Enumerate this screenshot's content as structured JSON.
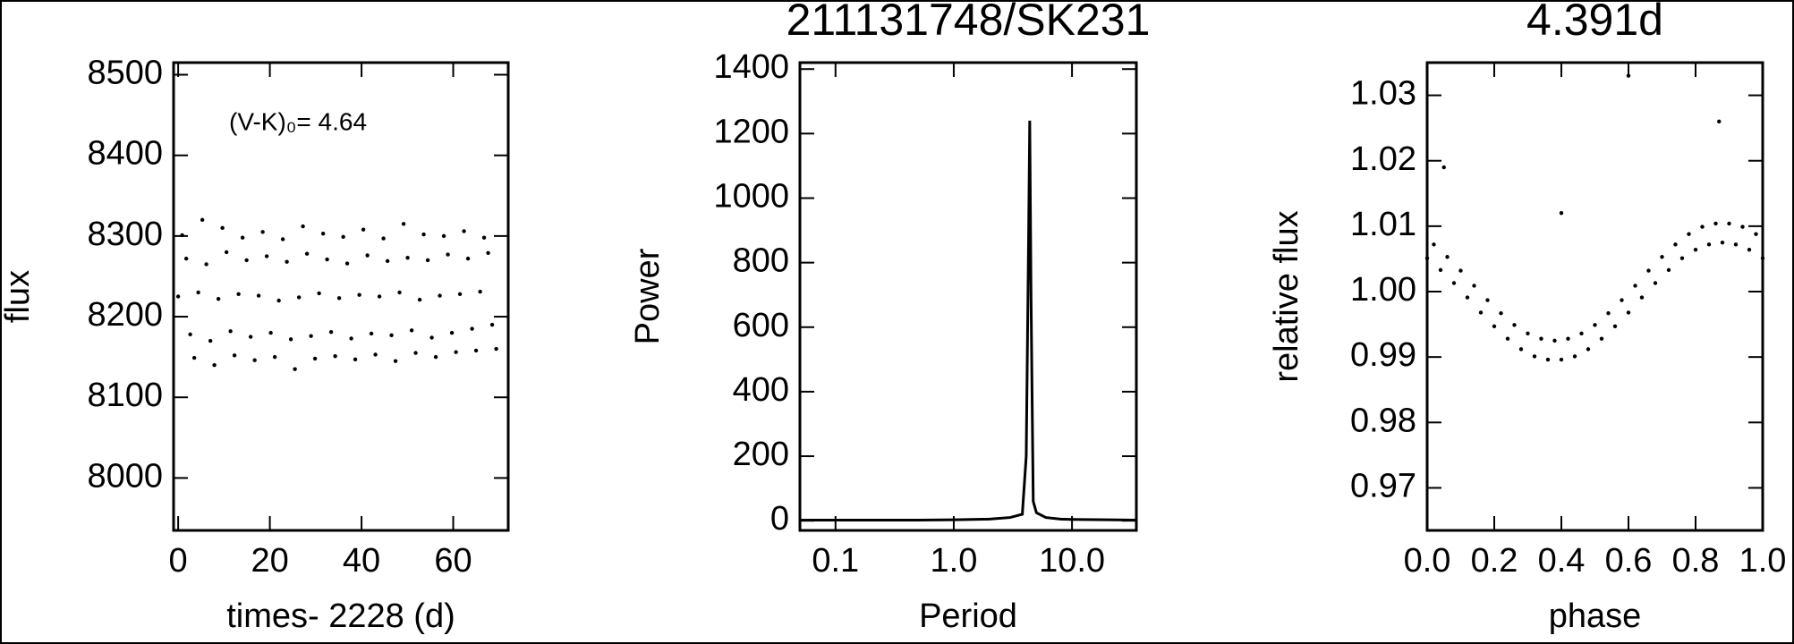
{
  "chart_data": [
    {
      "type": "scatter",
      "xlabel": "times- 2228 (d)",
      "ylabel": "flux",
      "annotation": "(V-K)₀= 4.64",
      "color": "#000000",
      "x": [
        0,
        0.88,
        1.76,
        2.63,
        3.51,
        4.39,
        5.27,
        6.15,
        7.03,
        7.9,
        8.78,
        9.66,
        10.54,
        11.42,
        12.29,
        13.17,
        14.05,
        14.93,
        15.81,
        16.69,
        17.56,
        18.44,
        19.32,
        20.2,
        21.08,
        21.96,
        22.83,
        23.71,
        24.59,
        25.47,
        26.35,
        27.22,
        28.1,
        28.98,
        29.86,
        30.74,
        31.62,
        32.49,
        33.37,
        34.25,
        35.13,
        36.01,
        36.88,
        37.76,
        38.64,
        39.52,
        40.4,
        41.28,
        42.15,
        43.03,
        43.91,
        44.79,
        45.67,
        46.54,
        47.42,
        48.3,
        49.18,
        50.06,
        50.94,
        51.81,
        52.69,
        53.57,
        54.45,
        55.33,
        56.2,
        57.08,
        57.96,
        58.84,
        59.72,
        60.6,
        61.47,
        62.35,
        63.23,
        64.11,
        64.99,
        65.87,
        66.74,
        67.62,
        68.5,
        69.38
      ],
      "values": [
        8225,
        8301,
        8272,
        8178,
        8149,
        8230,
        8320,
        8265,
        8170,
        8140,
        8222,
        8310,
        8280,
        8182,
        8152,
        8228,
        8298,
        8270,
        8175,
        8146,
        8226,
        8305,
        8275,
        8180,
        8150,
        8220,
        8296,
        8268,
        8172,
        8135,
        8224,
        8312,
        8278,
        8176,
        8148,
        8229,
        8303,
        8271,
        8181,
        8151,
        8223,
        8299,
        8266,
        8173,
        8147,
        8227,
        8308,
        8276,
        8179,
        8153,
        8225,
        8297,
        8269,
        8177,
        8145,
        8230,
        8315,
        8273,
        8183,
        8155,
        8221,
        8302,
        8270,
        8174,
        8150,
        8226,
        8300,
        8277,
        8180,
        8156,
        8228,
        8306,
        8272,
        8185,
        8158,
        8231,
        8298,
        8279,
        8190,
        8160
      ],
      "xlim": [
        -1,
        72
      ],
      "ylim": [
        7935,
        8515
      ],
      "xticks": [
        0,
        20,
        40,
        60
      ],
      "yticks": [
        8000,
        8100,
        8200,
        8300,
        8400,
        8500
      ]
    },
    {
      "type": "line",
      "title": "211131748/SK231",
      "xlabel": "Period",
      "ylabel": "Power",
      "color": "#000000",
      "xscale": "log",
      "x": [
        0.05,
        0.1,
        0.2,
        0.5,
        1,
        2,
        3,
        3.8,
        4.1,
        4.3,
        4.39,
        4.5,
        4.7,
        5,
        6,
        8,
        10,
        20,
        35
      ],
      "values": [
        2,
        2,
        2,
        2,
        3,
        5,
        10,
        20,
        200,
        900,
        1240,
        700,
        60,
        25,
        10,
        5,
        4,
        3,
        2
      ],
      "xlim": [
        0.05,
        35
      ],
      "ylim": [
        -30,
        1420
      ],
      "xticks": [
        0.1,
        {
          "value": 1,
          "label": "1.0"
        },
        {
          "value": 10,
          "label": "10.0"
        }
      ],
      "yticks": [
        0,
        200,
        400,
        600,
        800,
        1000,
        1200,
        1400
      ]
    },
    {
      "type": "scatter",
      "title": "4.391d",
      "xlabel": "phase",
      "ylabel": "relative flux",
      "color": "#000000",
      "x": [
        0,
        0.02,
        0.04,
        0.06,
        0.08,
        0.1,
        0.12,
        0.14,
        0.16,
        0.18,
        0.2,
        0.22,
        0.24,
        0.26,
        0.28,
        0.3,
        0.32,
        0.34,
        0.36,
        0.38,
        0.4,
        0.42,
        0.44,
        0.46,
        0.48,
        0.5,
        0.52,
        0.54,
        0.56,
        0.58,
        0.6,
        0.62,
        0.64,
        0.66,
        0.68,
        0.7,
        0.72,
        0.74,
        0.76,
        0.78,
        0.8,
        0.82,
        0.84,
        0.86,
        0.88,
        0.9,
        0.92,
        0.94,
        0.96,
        0.98,
        1.0,
        0.05,
        0.4,
        0.6,
        0.87
      ],
      "values": [
        1.0051,
        1.0072,
        1.0033,
        1.0053,
        1.0013,
        1.0032,
        0.9991,
        1.0009,
        0.9968,
        0.9987,
        0.9947,
        0.9967,
        0.9928,
        0.9949,
        0.9912,
        0.9936,
        0.9901,
        0.9928,
        0.9896,
        0.9925,
        0.9896,
        0.9928,
        0.9901,
        0.9936,
        0.9912,
        0.9949,
        0.9928,
        0.9967,
        0.9947,
        0.9987,
        0.9968,
        1.0009,
        0.9991,
        1.0032,
        1.0013,
        1.0053,
        1.0033,
        1.0072,
        1.0051,
        1.0088,
        1.0064,
        1.0099,
        1.0072,
        1.0104,
        1.0075,
        1.0104,
        1.0072,
        1.0099,
        1.0064,
        1.0088,
        1.0051,
        1.019,
        1.012,
        1.033,
        1.026
      ],
      "xlim": [
        0,
        1
      ],
      "ylim": [
        0.9635,
        1.035
      ],
      "xticks": [
        {
          "value": 0,
          "label": "0.0"
        },
        0.2,
        0.4,
        0.6,
        0.8,
        {
          "value": 1,
          "label": "1.0"
        }
      ],
      "yticks": [
        0.97,
        0.98,
        0.99,
        {
          "value": 1,
          "label": "1.00"
        },
        1.01,
        1.02,
        1.03
      ]
    }
  ]
}
